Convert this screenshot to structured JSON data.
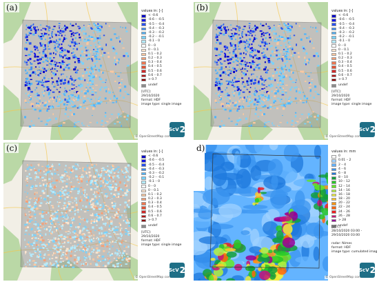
{
  "panels": [
    {
      "letter": "(a)",
      "attribution": "© OpenStreetMap contributors",
      "legend_title": "values in: [-]",
      "info": [
        "[UTC]:",
        "29/10/2020",
        "format: HDF",
        "image type: single image"
      ],
      "logo": {
        "text": "ScV",
        "digit": "2"
      }
    },
    {
      "letter": "(b)",
      "attribution": "© OpenStreetMap contributors",
      "legend_title": "values in: [-]",
      "info": [
        "[UTC]:",
        "29/10/2020",
        "format: HDF",
        "image type: single image"
      ],
      "logo": {
        "text": "ScV",
        "digit": "2"
      }
    },
    {
      "letter": "(c)",
      "attribution": "© OpenStreetMap contributors",
      "legend_title": "values in: [-]",
      "info": [
        "[UTC]:",
        "29/10/2020",
        "format: HDF",
        "image type: single image"
      ],
      "logo": {
        "text": "ScV",
        "digit": "2"
      }
    },
    {
      "letter": "d)",
      "attribution": "© OpenStreetMap contributors",
      "legend_title": "values in: mm",
      "info": [
        "[UTC]:",
        "28/10/2020 03:00 -",
        "29/10/2020 03:00",
        "",
        "radar: Nimes",
        "format: HDF",
        "image type: cumulated image"
      ],
      "logo": {
        "text": "ScV",
        "digit": "2"
      }
    }
  ],
  "legend_index": [
    {
      "label": "< -0.6",
      "color": "#0000c8"
    },
    {
      "label": "-0.6 – -0.5",
      "color": "#1414e6"
    },
    {
      "label": "-0.5 – -0.4",
      "color": "#2850f0"
    },
    {
      "label": "-0.4 – -0.3",
      "color": "#3c8cf5"
    },
    {
      "label": "-0.3 – -0.2",
      "color": "#50b4fa"
    },
    {
      "label": "-0.2 – -0.1",
      "color": "#78d2fc"
    },
    {
      "label": "-0.1 – 0",
      "color": "#b4ebfe"
    },
    {
      "label": "0 – 0",
      "color": "#ffffff"
    },
    {
      "label": "0 – 0.1",
      "color": "#fde6cf"
    },
    {
      "label": "0.1 – 0.2",
      "color": "#fac8a0"
    },
    {
      "label": "0.2 – 0.3",
      "color": "#f5a078"
    },
    {
      "label": "0.3 – 0.4",
      "color": "#f07850"
    },
    {
      "label": "0.4 – 0.5",
      "color": "#e65032"
    },
    {
      "label": "0.5 – 0.6",
      "color": "#d22828"
    },
    {
      "label": "0.6 – 0.7",
      "color": "#b41414"
    },
    {
      "label": "> 0.7",
      "color": "#8c0000"
    }
  ],
  "legend_precip": [
    {
      "label": "0",
      "color": "#ffffff"
    },
    {
      "label": "0.01 – 2",
      "color": "#a0d2ff"
    },
    {
      "label": "2 – 4",
      "color": "#64b4ff"
    },
    {
      "label": "4 – 6",
      "color": "#3c96f0"
    },
    {
      "label": "6 – 8",
      "color": "#1e78dc"
    },
    {
      "label": "8 – 10",
      "color": "#14a03c"
    },
    {
      "label": "10 – 12",
      "color": "#28c828"
    },
    {
      "label": "12 – 14",
      "color": "#64e628"
    },
    {
      "label": "14 – 16",
      "color": "#b4f03c"
    },
    {
      "label": "16 – 18",
      "color": "#f0f03c"
    },
    {
      "label": "18 – 20",
      "color": "#ffc828"
    },
    {
      "label": "20 – 22",
      "color": "#ff9614"
    },
    {
      "label": "22 – 24",
      "color": "#ff640a"
    },
    {
      "label": "24 – 26",
      "color": "#f01e1e"
    },
    {
      "label": "26 – 28",
      "color": "#c81478"
    },
    {
      "label": "> 28",
      "color": "#960096"
    }
  ],
  "undef": {
    "label": "undef",
    "color": "#8c8c8c"
  },
  "map_colors": {
    "basemap": "#f2efe6",
    "forest": "#b6d6a2",
    "forest_dark": "#8fc27c",
    "coverage": "#9a9a9a",
    "road": "#f5c84a"
  }
}
